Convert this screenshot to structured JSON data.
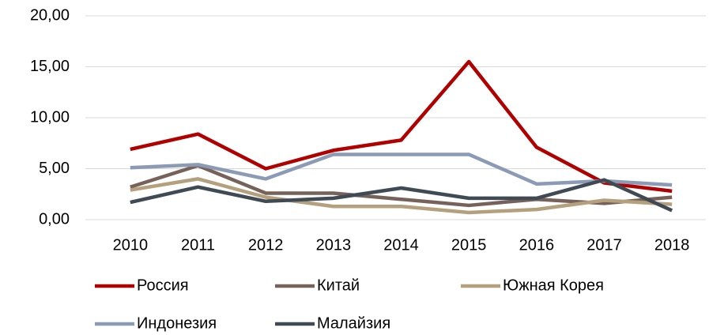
{
  "chart_data": {
    "type": "line",
    "categories": [
      "2010",
      "2011",
      "2012",
      "2013",
      "2014",
      "2015",
      "2016",
      "2017",
      "2018"
    ],
    "series": [
      {
        "name": "Россия",
        "color": "#b00000",
        "values": [
          6.9,
          8.4,
          5.0,
          6.8,
          7.8,
          15.5,
          7.1,
          3.6,
          2.8
        ]
      },
      {
        "name": "Китай",
        "color": "#76625a",
        "values": [
          3.2,
          5.3,
          2.6,
          2.6,
          2.0,
          1.4,
          2.0,
          1.6,
          2.2
        ]
      },
      {
        "name": "Южная Корея",
        "color": "#b5a07e",
        "values": [
          2.9,
          4.0,
          2.2,
          1.3,
          1.3,
          0.7,
          1.0,
          1.9,
          1.5
        ]
      },
      {
        "name": "Индонезия",
        "color": "#8c9bb5",
        "values": [
          5.1,
          5.4,
          4.0,
          6.4,
          6.4,
          6.4,
          3.5,
          3.8,
          3.4
        ]
      },
      {
        "name": "Малайзия",
        "color": "#3f4a55",
        "values": [
          1.7,
          3.2,
          1.8,
          2.1,
          3.1,
          2.1,
          2.1,
          3.9,
          0.9
        ]
      }
    ],
    "ylim": [
      0,
      20
    ],
    "yticks": [
      {
        "value": 0,
        "label": "0,00"
      },
      {
        "value": 5,
        "label": "5,00"
      },
      {
        "value": 10,
        "label": "10,00"
      },
      {
        "value": 15,
        "label": "15,00"
      },
      {
        "value": 20,
        "label": "20,00"
      }
    ],
    "grid": true,
    "legend": "bottom"
  }
}
